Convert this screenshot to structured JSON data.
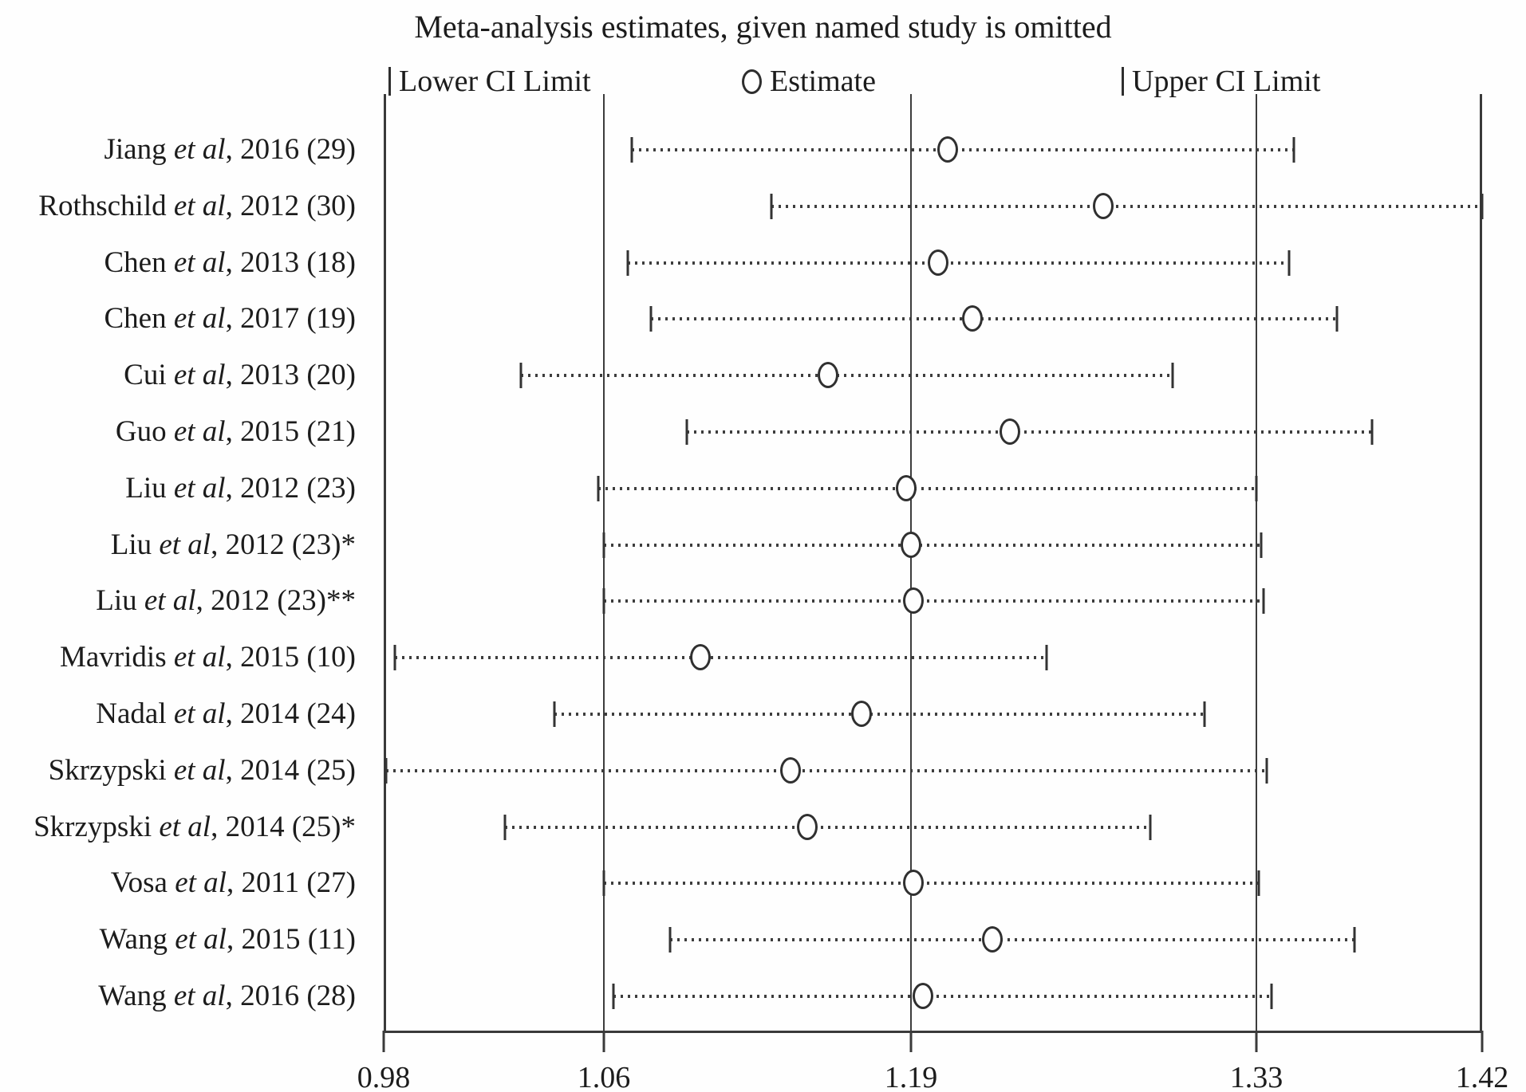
{
  "title": "Meta-analysis estimates, given named study is omitted",
  "legend": {
    "lower_label": "Lower CI Limit",
    "estimate_label": "Estimate",
    "upper_label": "Upper CI Limit"
  },
  "colors": {
    "line": "#3a3a3a",
    "text": "#1c1c1c",
    "background": "#fefefe"
  },
  "chart_data": {
    "type": "scatter",
    "subtype": "leave-one-out-forest-plot",
    "title": "Meta-analysis estimates, given named study is omitted",
    "xlabel": "",
    "ylabel": "",
    "xlim": [
      0.98,
      1.42
    ],
    "grid": "vertical-reference-lines-only",
    "etal_label": "et al",
    "axis": {
      "ticks": [
        {
          "label": "0.98",
          "value": 0.98
        },
        {
          "label": "1.06",
          "value": 1.06
        },
        {
          "label": "1.19",
          "value": 1.19
        },
        {
          "label": "1.33",
          "value": 1.33
        },
        {
          "label": "1.42",
          "value": 1.42
        }
      ],
      "calibration": [
        {
          "value": 0.98,
          "pos": 0.0
        },
        {
          "value": 1.06,
          "pos": 0.2004
        },
        {
          "value": 1.19,
          "pos": 0.48
        },
        {
          "value": 1.33,
          "pos": 0.7945
        },
        {
          "value": 1.42,
          "pos": 1.0
        }
      ]
    },
    "reference_lines": [
      1.06,
      1.19,
      1.33
    ],
    "studies": [
      {
        "author": "Jiang",
        "ref": ", 2016 (29)",
        "lower": 1.072,
        "estimate": 1.205,
        "upper": 1.345
      },
      {
        "author": "Rothschild",
        "ref": ", 2012 (30)",
        "lower": 1.131,
        "estimate": 1.268,
        "upper": 1.42
      },
      {
        "author": "Chen",
        "ref": ", 2013 (18)",
        "lower": 1.07,
        "estimate": 1.201,
        "upper": 1.343
      },
      {
        "author": "Chen",
        "ref": ", 2017 (19)",
        "lower": 1.08,
        "estimate": 1.215,
        "upper": 1.362
      },
      {
        "author": "Cui",
        "ref": ", 2013 (20)",
        "lower": 1.03,
        "estimate": 1.155,
        "upper": 1.296
      },
      {
        "author": "Guo",
        "ref": ", 2015 (21)",
        "lower": 1.095,
        "estimate": 1.23,
        "upper": 1.376
      },
      {
        "author": "Liu",
        "ref": ", 2012 (23)",
        "lower": 1.058,
        "estimate": 1.188,
        "upper": 1.33
      },
      {
        "author": "Liu",
        "ref": ", 2012 (23)*",
        "lower": 1.06,
        "estimate": 1.19,
        "upper": 1.332
      },
      {
        "author": "Liu",
        "ref": ", 2012 (23)**",
        "lower": 1.06,
        "estimate": 1.191,
        "upper": 1.333
      },
      {
        "author": "Mavridis",
        "ref": ", 2015 (10)",
        "lower": 0.984,
        "estimate": 1.101,
        "upper": 1.245
      },
      {
        "author": "Nadal",
        "ref": ", 2014 (24)",
        "lower": 1.042,
        "estimate": 1.169,
        "upper": 1.309
      },
      {
        "author": "Skrzypski",
        "ref": ", 2014 (25)",
        "lower": 0.981,
        "estimate": 1.139,
        "upper": 1.334
      },
      {
        "author": "Skrzypski",
        "ref": ", 2014 (25)*",
        "lower": 1.024,
        "estimate": 1.146,
        "upper": 1.287
      },
      {
        "author": "Vosa",
        "ref": ", 2011 (27)",
        "lower": 1.06,
        "estimate": 1.191,
        "upper": 1.331
      },
      {
        "author": "Wang",
        "ref": ", 2015 (11)",
        "lower": 1.088,
        "estimate": 1.223,
        "upper": 1.369
      },
      {
        "author": "Wang",
        "ref": ", 2016 (28)",
        "lower": 1.064,
        "estimate": 1.195,
        "upper": 1.336
      }
    ]
  }
}
